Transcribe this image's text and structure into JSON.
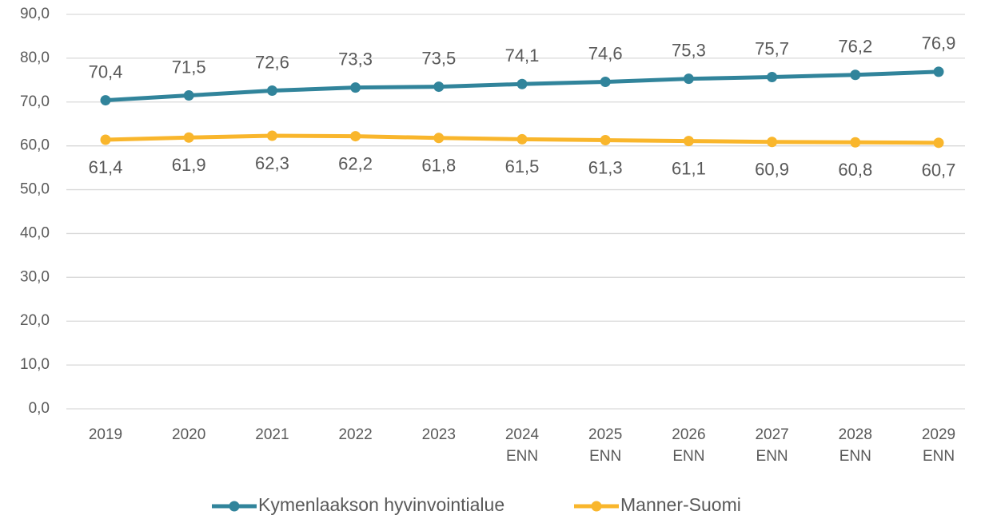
{
  "chart_data": {
    "type": "line",
    "categories": [
      "2019",
      "2020",
      "2021",
      "2022",
      "2023",
      "2024\nENN",
      "2025\nENN",
      "2026\nENN",
      "2027\nENN",
      "2028\nENN",
      "2029\nENN"
    ],
    "series": [
      {
        "name": "Kymenlaakson hyvinvointialue",
        "color": "#31849b",
        "values": [
          70.4,
          71.5,
          72.6,
          73.3,
          73.5,
          74.1,
          74.6,
          75.3,
          75.7,
          76.2,
          76.9
        ],
        "value_labels": [
          "70,4",
          "71,5",
          "72,6",
          "73,3",
          "73,5",
          "74,1",
          "74,6",
          "75,3",
          "75,7",
          "76,2",
          "76,9"
        ]
      },
      {
        "name": "Manner-Suomi",
        "color": "#f9b62c",
        "values": [
          61.4,
          61.9,
          62.3,
          62.2,
          61.8,
          61.5,
          61.3,
          61.1,
          60.9,
          60.8,
          60.7
        ],
        "value_labels": [
          "61,4",
          "61,9",
          "62,3",
          "62,2",
          "61,8",
          "61,5",
          "61,3",
          "61,1",
          "60,9",
          "60,8",
          "60,7"
        ]
      }
    ],
    "ylim": [
      0,
      90
    ],
    "yticks": [
      {
        "value": 0,
        "label": "0,0"
      },
      {
        "value": 10,
        "label": "10,0"
      },
      {
        "value": 20,
        "label": "20,0"
      },
      {
        "value": 30,
        "label": "30,0"
      },
      {
        "value": 40,
        "label": "40,0"
      },
      {
        "value": 50,
        "label": "50,0"
      },
      {
        "value": 60,
        "label": "60,0"
      },
      {
        "value": 70,
        "label": "70,0"
      },
      {
        "value": 80,
        "label": "80,0"
      },
      {
        "value": 90,
        "label": "90,0"
      }
    ],
    "grid": true,
    "legend": "bottom"
  }
}
